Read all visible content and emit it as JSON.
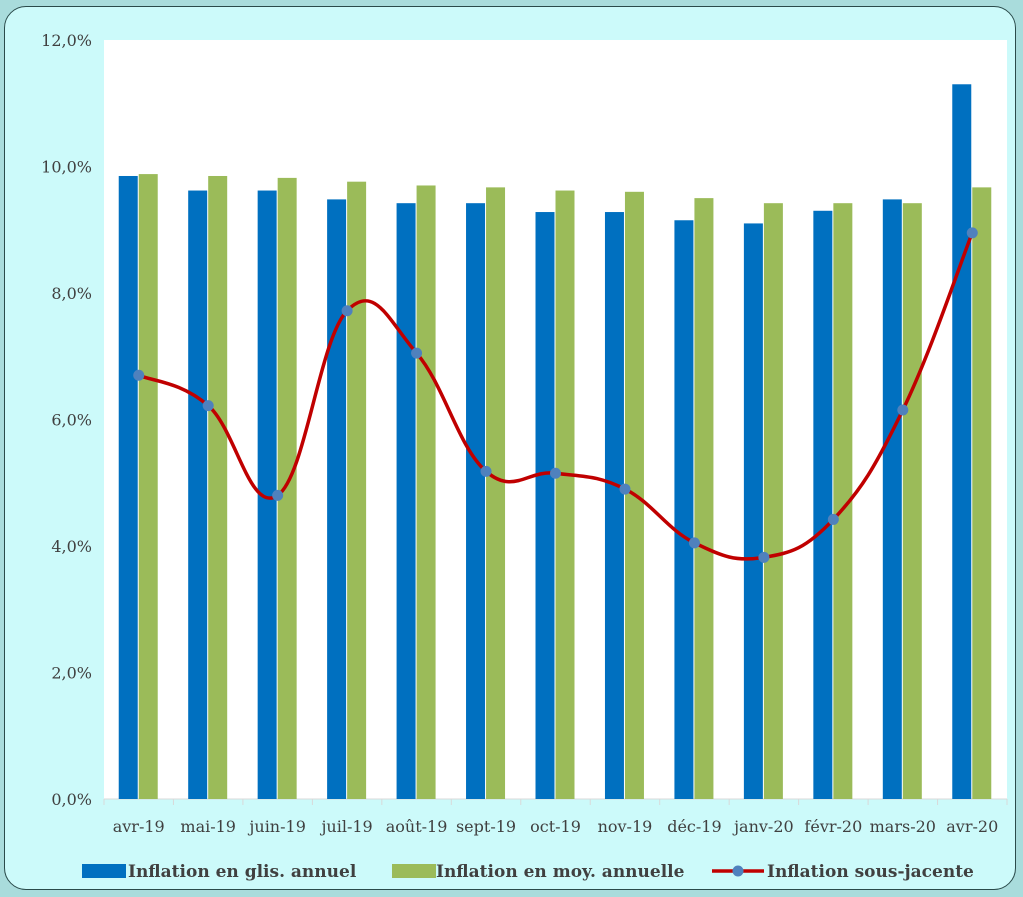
{
  "chart_data": {
    "type": "bar",
    "categories": [
      "avr-19",
      "mai-19",
      "juin-19",
      "juil-19",
      "août-19",
      "sept-19",
      "oct-19",
      "nov-19",
      "déc-19",
      "janv-20",
      "févr-20",
      "mars-20",
      "avr-20"
    ],
    "series": [
      {
        "name": "Inflation en glis. annuel",
        "type": "bar",
        "color": "#0070c0",
        "values": [
          9.85,
          9.62,
          9.62,
          9.48,
          9.42,
          9.42,
          9.28,
          9.28,
          9.15,
          9.1,
          9.3,
          9.48,
          11.3
        ]
      },
      {
        "name": "Inflation en moy. annuelle",
        "type": "bar",
        "color": "#9bbb59",
        "values": [
          9.88,
          9.85,
          9.82,
          9.76,
          9.7,
          9.67,
          9.62,
          9.6,
          9.5,
          9.42,
          9.42,
          9.42,
          9.67
        ]
      },
      {
        "name": "Inflation sous-jacente",
        "type": "line",
        "color": "#c00000",
        "marker_color": "#4f81bd",
        "values": [
          6.7,
          6.22,
          4.8,
          7.72,
          7.05,
          5.18,
          5.15,
          4.9,
          4.05,
          3.82,
          4.42,
          6.15,
          8.95
        ]
      }
    ],
    "y_ticks": [
      "0,0%",
      "2,0%",
      "4,0%",
      "6,0%",
      "8,0%",
      "10,0%",
      "12,0%"
    ],
    "ylim": [
      0,
      12
    ],
    "y_step": 2,
    "grid": false,
    "legend_position": "bottom"
  }
}
